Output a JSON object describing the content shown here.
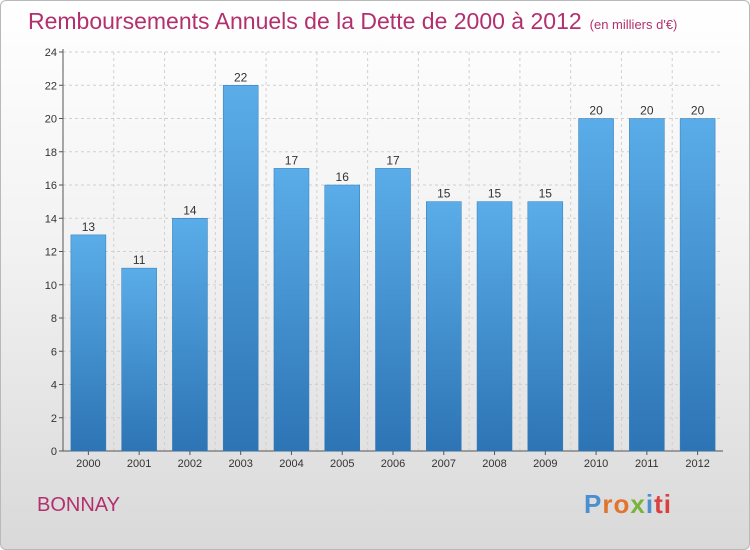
{
  "chart_data": {
    "type": "bar",
    "title": "Remboursements Annuels de la Dette de 2000 à 2012",
    "unit": "(en milliers d'€)",
    "categories": [
      "2000",
      "2001",
      "2002",
      "2003",
      "2004",
      "2005",
      "2006",
      "2007",
      "2008",
      "2009",
      "2010",
      "2011",
      "2012"
    ],
    "values": [
      13,
      11,
      14,
      22,
      17,
      16,
      17,
      15,
      15,
      15,
      20,
      20,
      20
    ],
    "ylim": [
      0,
      24
    ],
    "yticks": [
      0,
      2,
      4,
      6,
      8,
      10,
      12,
      14,
      16,
      18,
      20,
      22,
      24
    ],
    "grid": true,
    "bar_color": "#4a9ad8"
  },
  "footer": {
    "commune": "BONNAY",
    "logo_letters": [
      "P",
      "r",
      "o",
      "x",
      "i",
      "ti"
    ]
  }
}
